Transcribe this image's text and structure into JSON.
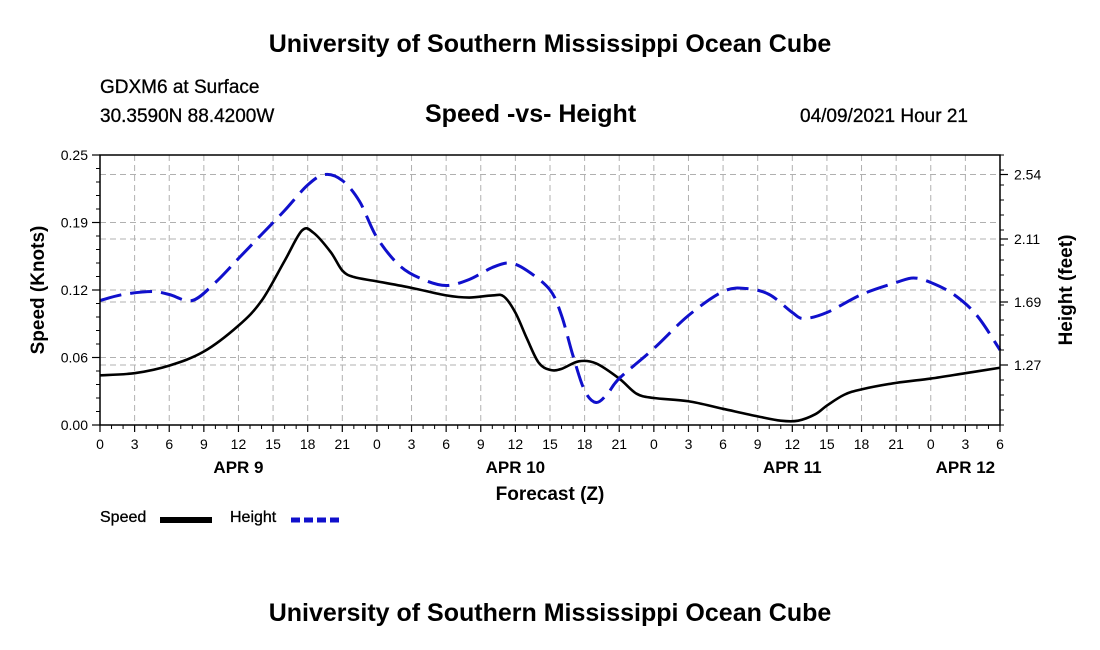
{
  "header": {
    "title": "University of Southern Mississippi Ocean Cube",
    "station": "GDXM6 at Surface",
    "coords": "30.3590N  88.4200W",
    "subtitle": "Speed -vs- Height",
    "datetime": "04/09/2021 Hour 21"
  },
  "footer": {
    "title": "University of Southern Mississippi Ocean Cube"
  },
  "colors": {
    "speed": "#000000",
    "height": "#1010cc",
    "grid": "#b0b0b0"
  },
  "legend": {
    "speed_label": "Speed",
    "height_label": "Height"
  },
  "chart_data": {
    "type": "line",
    "xlabel": "Forecast (Z)",
    "ylabel_left": "Speed (Knots)",
    "ylabel_right": "Height (feet)",
    "x_unit": "hours since APR 9 00Z",
    "xlim": [
      0,
      78
    ],
    "ylim_left": [
      0,
      0.25
    ],
    "ylim_right": [
      0.87,
      2.67
    ],
    "x_ticks": [
      {
        "x": 0,
        "label": "0"
      },
      {
        "x": 3,
        "label": "3"
      },
      {
        "x": 6,
        "label": "6"
      },
      {
        "x": 9,
        "label": "9"
      },
      {
        "x": 12,
        "label": "12"
      },
      {
        "x": 15,
        "label": "15"
      },
      {
        "x": 18,
        "label": "18"
      },
      {
        "x": 21,
        "label": "21"
      },
      {
        "x": 24,
        "label": "0"
      },
      {
        "x": 27,
        "label": "3"
      },
      {
        "x": 30,
        "label": "6"
      },
      {
        "x": 33,
        "label": "9"
      },
      {
        "x": 36,
        "label": "12"
      },
      {
        "x": 39,
        "label": "15"
      },
      {
        "x": 42,
        "label": "18"
      },
      {
        "x": 45,
        "label": "21"
      },
      {
        "x": 48,
        "label": "0"
      },
      {
        "x": 51,
        "label": "3"
      },
      {
        "x": 54,
        "label": "6"
      },
      {
        "x": 57,
        "label": "9"
      },
      {
        "x": 60,
        "label": "12"
      },
      {
        "x": 63,
        "label": "15"
      },
      {
        "x": 66,
        "label": "18"
      },
      {
        "x": 69,
        "label": "21"
      },
      {
        "x": 72,
        "label": "0"
      },
      {
        "x": 75,
        "label": "3"
      },
      {
        "x": 78,
        "label": "6"
      }
    ],
    "date_labels": [
      {
        "x": 12,
        "label": "APR 9"
      },
      {
        "x": 36,
        "label": "APR 10"
      },
      {
        "x": 60,
        "label": "APR 11"
      },
      {
        "x": 75,
        "label": "APR 12"
      }
    ],
    "y_ticks_left": [
      {
        "v": 0.0,
        "label": "0.00"
      },
      {
        "v": 0.0625,
        "label": "0.06"
      },
      {
        "v": 0.125,
        "label": "0.12"
      },
      {
        "v": 0.1875,
        "label": "0.19"
      },
      {
        "v": 0.25,
        "label": "0.25"
      }
    ],
    "y_ticks_right": [
      {
        "v": 1.27,
        "label": "1.27"
      },
      {
        "v": 1.69,
        "label": "1.69"
      },
      {
        "v": 2.11,
        "label": "2.11"
      },
      {
        "v": 2.54,
        "label": "2.54"
      }
    ],
    "series": [
      {
        "name": "Speed",
        "axis": "left",
        "style": "solid",
        "points": [
          [
            0,
            0.046
          ],
          [
            3,
            0.048
          ],
          [
            6,
            0.055
          ],
          [
            9,
            0.068
          ],
          [
            12,
            0.092
          ],
          [
            14,
            0.115
          ],
          [
            16,
            0.152
          ],
          [
            17.5,
            0.18
          ],
          [
            18.5,
            0.178
          ],
          [
            20,
            0.16
          ],
          [
            21,
            0.143
          ],
          [
            22,
            0.137
          ],
          [
            24,
            0.133
          ],
          [
            27,
            0.127
          ],
          [
            30,
            0.12
          ],
          [
            32,
            0.118
          ],
          [
            34,
            0.12
          ],
          [
            35,
            0.119
          ],
          [
            36,
            0.104
          ],
          [
            37,
            0.08
          ],
          [
            38,
            0.058
          ],
          [
            39,
            0.051
          ],
          [
            40,
            0.052
          ],
          [
            41.5,
            0.059
          ],
          [
            43,
            0.057
          ],
          [
            45,
            0.043
          ],
          [
            46.5,
            0.029
          ],
          [
            48,
            0.025
          ],
          [
            51,
            0.022
          ],
          [
            54,
            0.015
          ],
          [
            57,
            0.008
          ],
          [
            59,
            0.004
          ],
          [
            60.5,
            0.004
          ],
          [
            62,
            0.01
          ],
          [
            63,
            0.018
          ],
          [
            64.5,
            0.028
          ],
          [
            66,
            0.033
          ],
          [
            69,
            0.039
          ],
          [
            72,
            0.043
          ],
          [
            75,
            0.048
          ],
          [
            78,
            0.053
          ]
        ]
      },
      {
        "name": "Height",
        "axis": "right",
        "style": "dashed",
        "points": [
          [
            0,
            1.7
          ],
          [
            2,
            1.74
          ],
          [
            4.5,
            1.76
          ],
          [
            6,
            1.74
          ],
          [
            8,
            1.7
          ],
          [
            10,
            1.82
          ],
          [
            12,
            1.98
          ],
          [
            14,
            2.14
          ],
          [
            16,
            2.3
          ],
          [
            18,
            2.47
          ],
          [
            19.5,
            2.54
          ],
          [
            21,
            2.5
          ],
          [
            22.5,
            2.36
          ],
          [
            24,
            2.12
          ],
          [
            26,
            1.93
          ],
          [
            28,
            1.84
          ],
          [
            30,
            1.8
          ],
          [
            32,
            1.84
          ],
          [
            34,
            1.92
          ],
          [
            35.5,
            1.95
          ],
          [
            37,
            1.9
          ],
          [
            39,
            1.77
          ],
          [
            40,
            1.6
          ],
          [
            41,
            1.33
          ],
          [
            42,
            1.1
          ],
          [
            43,
            1.02
          ],
          [
            44,
            1.08
          ],
          [
            45,
            1.18
          ],
          [
            48,
            1.38
          ],
          [
            51,
            1.6
          ],
          [
            54,
            1.76
          ],
          [
            56,
            1.78
          ],
          [
            58,
            1.74
          ],
          [
            60,
            1.62
          ],
          [
            61,
            1.58
          ],
          [
            63,
            1.62
          ],
          [
            66,
            1.74
          ],
          [
            69,
            1.82
          ],
          [
            70.5,
            1.85
          ],
          [
            72,
            1.82
          ],
          [
            74,
            1.74
          ],
          [
            76,
            1.6
          ],
          [
            78,
            1.37
          ]
        ]
      }
    ]
  }
}
